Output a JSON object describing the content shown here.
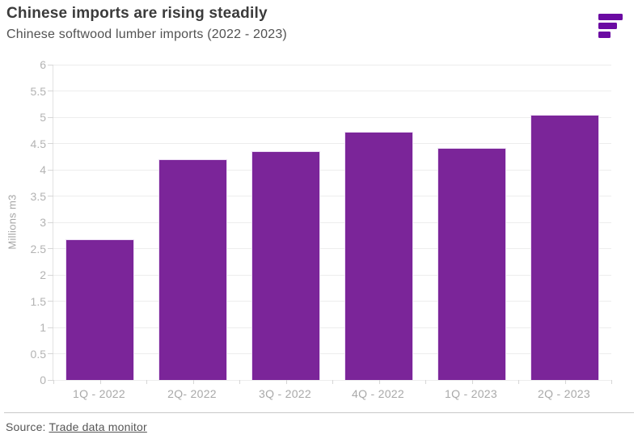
{
  "header": {
    "title": "Chinese imports are rising steadily",
    "subtitle": "Chinese softwood lumber imports (2022 - 2023)"
  },
  "logo": {
    "name": "fastmarkets-logo",
    "color": "#6B0AA2"
  },
  "chart_data": {
    "type": "bar",
    "title": "Chinese imports are rising steadily",
    "subtitle": "Chinese softwood lumber imports (2022 - 2023)",
    "categories": [
      "1Q - 2022",
      "2Q- 2022",
      "3Q - 2022",
      "4Q - 2022",
      "1Q - 2023",
      "2Q - 2023"
    ],
    "values": [
      2.67,
      4.2,
      4.35,
      4.72,
      4.42,
      5.05
    ],
    "xlabel": "",
    "ylabel": "Millions m3",
    "ylim": [
      0,
      6
    ],
    "ytick_step": 0.5,
    "yticks": [
      0,
      0.5,
      1,
      1.5,
      2,
      2.5,
      3,
      3.5,
      4,
      4.5,
      5,
      5.5,
      6
    ],
    "grid": true,
    "legend": "none",
    "bar_color": "#7B2599"
  },
  "footer": {
    "source_prefix": "Source: ",
    "source_link": "Trade data monitor"
  },
  "colors": {
    "bar": "#7B2599",
    "logo": "#6B0AA2",
    "grid": "#ededed",
    "axis_line": "#e2e2e2",
    "tick": "#d6d6d6",
    "y_tick_label": "#b3b3b3",
    "x_tick_label": "#a9a9a9",
    "title": "#3b3b3b",
    "subtitle": "#525252",
    "source": "#565656"
  }
}
